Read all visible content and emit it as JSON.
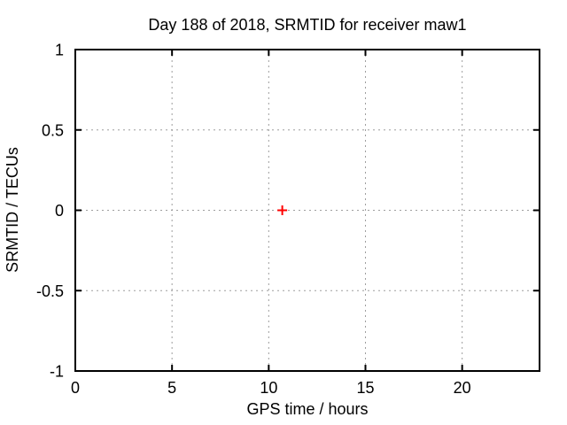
{
  "chart_data": {
    "type": "scatter",
    "title": "Day 188 of 2018, SRMTID for receiver maw1",
    "xlabel": "GPS time / hours",
    "ylabel": "SRMTID / TECUs",
    "xlim": [
      0,
      24
    ],
    "ylim": [
      -1,
      1
    ],
    "x_ticks": [
      0,
      5,
      10,
      15,
      20
    ],
    "x_tick_labels": [
      "0",
      "5",
      "10",
      "15",
      "20"
    ],
    "y_ticks": [
      -1,
      -0.5,
      0,
      0.5,
      1
    ],
    "y_tick_labels": [
      "-1",
      "-0.5",
      "0",
      "0.5",
      "1"
    ],
    "grid": true,
    "grid_style": "dotted",
    "legend": "none",
    "series": [
      {
        "name": "SRMTID",
        "marker": "plus",
        "color": "#ff0000",
        "points": [
          {
            "x": 10.7,
            "y": 0
          }
        ]
      }
    ],
    "colors": {
      "background": "#ffffff",
      "border": "#000000",
      "grid": "#9e9e9e",
      "text": "#000000",
      "point": "#ff0000"
    }
  }
}
